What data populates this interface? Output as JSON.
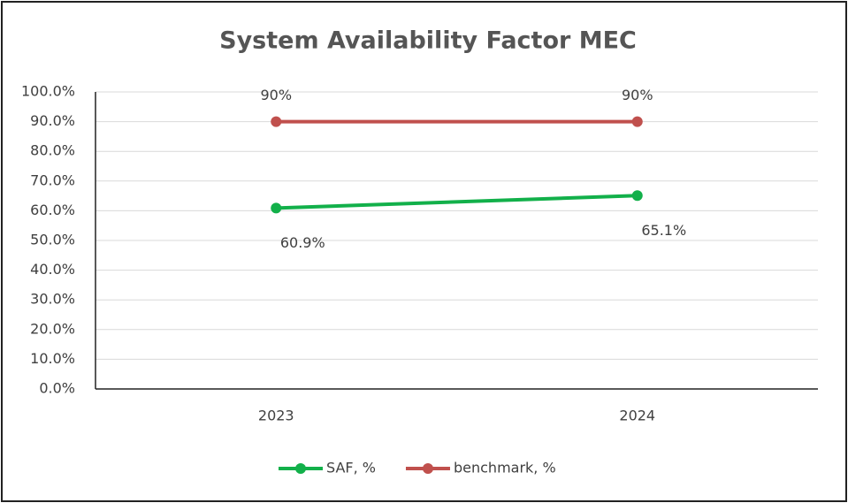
{
  "chart_data": {
    "type": "line",
    "title": "System Availability Factor MEC",
    "categories": [
      "2023",
      "2024"
    ],
    "series": [
      {
        "name": "SAF, %",
        "color": "#12b04a",
        "values": [
          60.9,
          65.1
        ],
        "value_labels": [
          "60.9%",
          "65.1%"
        ]
      },
      {
        "name": "benchmark, %",
        "color": "#c0504d",
        "values": [
          90,
          90
        ],
        "value_labels": [
          "90%",
          "90%"
        ]
      }
    ],
    "ylim": [
      0,
      100
    ],
    "yticks": [
      {
        "value": 0,
        "label": "0.0%"
      },
      {
        "value": 10,
        "label": "10.0%"
      },
      {
        "value": 20,
        "label": "20.0%"
      },
      {
        "value": 30,
        "label": "30.0%"
      },
      {
        "value": 40,
        "label": "40.0%"
      },
      {
        "value": 50,
        "label": "50.0%"
      },
      {
        "value": 60,
        "label": "60.0%"
      },
      {
        "value": 70,
        "label": "70.0%"
      },
      {
        "value": 80,
        "label": "80.0%"
      },
      {
        "value": 90,
        "label": "90.0%"
      },
      {
        "value": 100,
        "label": "100.0%"
      }
    ],
    "grid": true,
    "legend": "bottom"
  }
}
